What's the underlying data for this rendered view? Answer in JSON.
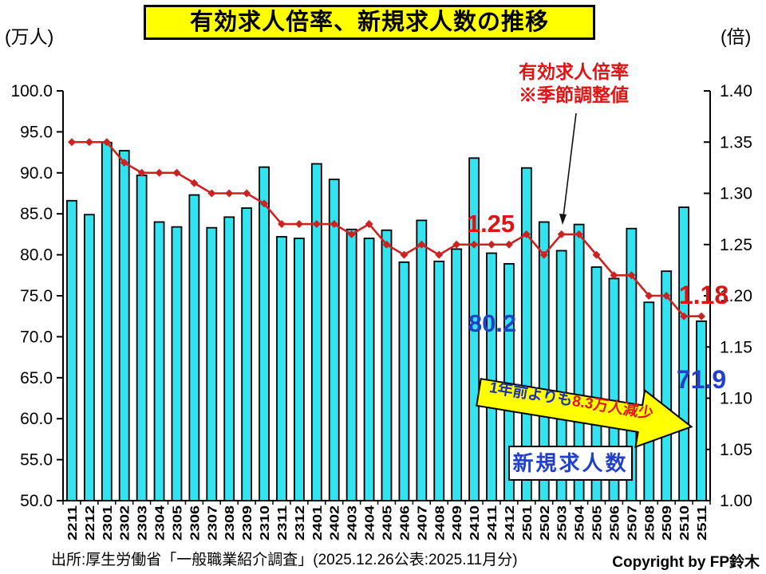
{
  "title": "有効求人倍率、新規求人数の推移",
  "left_axis_unit": "(万人)",
  "right_axis_unit": "(倍)",
  "annotations": {
    "line_label_line1": "有効求人倍率",
    "line_label_line2": "※季節調整値",
    "line_value_mid": "1.25",
    "line_value_end": "1.18",
    "bar_value_mid": "80.2",
    "bar_value_end": "71.9",
    "arrow_text_blue": "1年前よりも",
    "arrow_text_red": "8.3万人減少",
    "bar_series_label": "新規求人数"
  },
  "footer": {
    "source": "出所:厚生労働省「一般職業紹介調査」(2025.12.26公表:2025.11月分)",
    "copyright": "Copyright by FP鈴木"
  },
  "colors": {
    "bar_fill": "#33E3EF",
    "bar_stroke": "#000000",
    "line": "#CC2222",
    "title_bg": "#FFFF00",
    "blue_text": "#2240C8",
    "red_text": "#DC1414"
  },
  "chart_data": {
    "type": "bar",
    "subtype": "bar+line combo, dual axis",
    "categories": [
      "2211",
      "2212",
      "2301",
      "2302",
      "2303",
      "2304",
      "2305",
      "2306",
      "2307",
      "2308",
      "2309",
      "2310",
      "2311",
      "2312",
      "2401",
      "2402",
      "2403",
      "2404",
      "2405",
      "2406",
      "2407",
      "2408",
      "2409",
      "2410",
      "2411",
      "2412",
      "2501",
      "2502",
      "2503",
      "2504",
      "2505",
      "2506",
      "2507",
      "2508",
      "2509",
      "2510",
      "2511"
    ],
    "series": [
      {
        "name": "新規求人数",
        "type": "bar",
        "axis": "left",
        "unit": "万人",
        "values": [
          86.6,
          84.9,
          93.7,
          92.7,
          89.7,
          84.0,
          83.4,
          87.3,
          83.3,
          84.6,
          85.7,
          90.7,
          82.2,
          82.0,
          91.1,
          89.2,
          83.1,
          82.0,
          83.0,
          79.1,
          84.2,
          79.2,
          80.7,
          91.8,
          80.2,
          78.9,
          90.6,
          84.0,
          80.5,
          83.7,
          78.5,
          77.1,
          83.2,
          74.2,
          78.0,
          85.8,
          71.9
        ]
      },
      {
        "name": "有効求人倍率(季節調整値)",
        "type": "line",
        "axis": "right",
        "unit": "倍",
        "values": [
          1.35,
          1.35,
          1.35,
          1.33,
          1.32,
          1.32,
          1.32,
          1.31,
          1.3,
          1.3,
          1.3,
          1.29,
          1.27,
          1.27,
          1.27,
          1.27,
          1.26,
          1.27,
          1.25,
          1.24,
          1.25,
          1.24,
          1.25,
          1.25,
          1.25,
          1.25,
          1.26,
          1.24,
          1.26,
          1.26,
          1.24,
          1.22,
          1.22,
          1.2,
          1.2,
          1.18,
          1.18
        ]
      }
    ],
    "left_axis": {
      "label": "(万人)",
      "min": 50.0,
      "max": 100.0,
      "step": 5.0,
      "ticks": [
        "50.0",
        "55.0",
        "60.0",
        "65.0",
        "70.0",
        "75.0",
        "80.0",
        "85.0",
        "90.0",
        "95.0",
        "100.0"
      ]
    },
    "right_axis": {
      "label": "(倍)",
      "min": 1.0,
      "max": 1.4,
      "step": 0.05,
      "ticks": [
        "1.00",
        "1.05",
        "1.10",
        "1.15",
        "1.20",
        "1.25",
        "1.30",
        "1.35",
        "1.40"
      ]
    },
    "grid": false,
    "legend": "none",
    "title": "有効求人倍率、新規求人数の推移"
  }
}
